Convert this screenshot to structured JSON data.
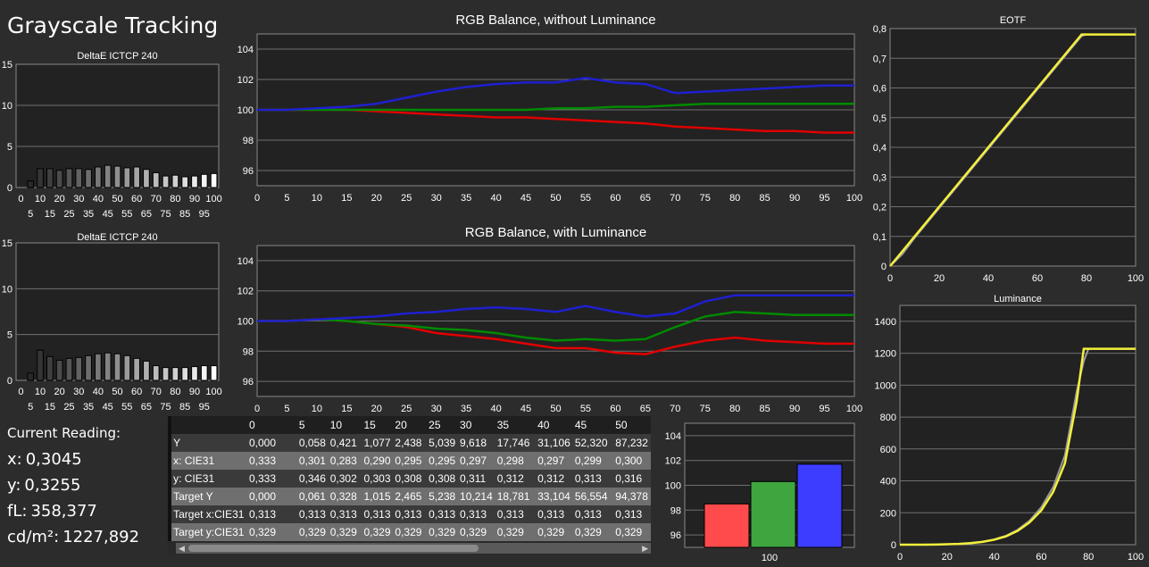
{
  "title": "Grayscale Tracking",
  "readout": {
    "heading": "Current Reading:",
    "lines": [
      {
        "label": "x:",
        "value": "0,3045"
      },
      {
        "label": "y:",
        "value": "0,3255"
      },
      {
        "label": "fL:",
        "value": "358,377"
      },
      {
        "label": "cd/m²:",
        "value": "1227,892"
      }
    ]
  },
  "colors": {
    "red": "#e00000",
    "green": "#008a00",
    "blue": "#1f1fd0",
    "yellow": "#f4f03c",
    "grid": "#707070"
  },
  "table": {
    "columns": [
      "0",
      "5",
      "10",
      "15",
      "20",
      "25",
      "30",
      "35",
      "40",
      "45",
      "50"
    ],
    "rows": [
      {
        "label": "Y",
        "values": [
          "0,000",
          "0,058",
          "0,421",
          "1,077",
          "2,438",
          "5,039",
          "9,618",
          "17,746",
          "31,106",
          "52,320",
          "87,232"
        ]
      },
      {
        "label": "x: CIE31",
        "values": [
          "0,333",
          "0,301",
          "0,283",
          "0,290",
          "0,295",
          "0,295",
          "0,297",
          "0,298",
          "0,297",
          "0,299",
          "0,300"
        ]
      },
      {
        "label": "y: CIE31",
        "values": [
          "0,333",
          "0,346",
          "0,302",
          "0,303",
          "0,308",
          "0,308",
          "0,311",
          "0,312",
          "0,312",
          "0,313",
          "0,316"
        ]
      },
      {
        "label": "Target Y",
        "values": [
          "0,000",
          "0,061",
          "0,328",
          "1,015",
          "2,465",
          "5,238",
          "10,214",
          "18,781",
          "33,104",
          "56,554",
          "94,378"
        ]
      },
      {
        "label": "Target x:CIE31",
        "values": [
          "0,313",
          "0,313",
          "0,313",
          "0,313",
          "0,313",
          "0,313",
          "0,313",
          "0,313",
          "0,313",
          "0,313",
          "0,313"
        ]
      },
      {
        "label": "Target y:CIE31",
        "values": [
          "0,329",
          "0,329",
          "0,329",
          "0,329",
          "0,329",
          "0,329",
          "0,329",
          "0,329",
          "0,329",
          "0,329",
          "0,329"
        ]
      }
    ]
  },
  "chart_data": [
    {
      "type": "bar",
      "title": "DeltaE ICTCP 240",
      "categories": [
        "0",
        "5",
        "10",
        "15",
        "20",
        "25",
        "30",
        "35",
        "40",
        "45",
        "50",
        "55",
        "60",
        "65",
        "70",
        "75",
        "80",
        "85",
        "90",
        "95",
        "100"
      ],
      "values": [
        0.0,
        0.8,
        2.3,
        2.3,
        2.1,
        2.3,
        2.3,
        2.2,
        2.5,
        2.7,
        2.6,
        2.4,
        2.5,
        2.2,
        1.8,
        1.4,
        1.5,
        1.3,
        1.4,
        1.6,
        1.7
      ],
      "ylim": [
        0,
        15
      ],
      "yticks": [
        0,
        5,
        10,
        15
      ],
      "xticks_top": [
        "0",
        "10",
        "20",
        "30",
        "40",
        "50",
        "60",
        "70",
        "80",
        "90",
        "100"
      ],
      "xticks_bottom": [
        "5",
        "15",
        "25",
        "35",
        "45",
        "55",
        "65",
        "75",
        "85",
        "95"
      ],
      "grid": true
    },
    {
      "type": "line",
      "title": "RGB Balance, without Luminance",
      "x": [
        0,
        5,
        10,
        15,
        20,
        25,
        30,
        35,
        40,
        45,
        50,
        55,
        60,
        65,
        70,
        75,
        80,
        85,
        90,
        95,
        100
      ],
      "series": [
        {
          "color": "red",
          "values": [
            100.0,
            100.0,
            100.0,
            100.0,
            99.9,
            99.8,
            99.7,
            99.6,
            99.5,
            99.5,
            99.4,
            99.3,
            99.2,
            99.1,
            98.9,
            98.8,
            98.7,
            98.6,
            98.6,
            98.5,
            98.5
          ]
        },
        {
          "color": "green",
          "values": [
            100.0,
            100.0,
            100.0,
            100.0,
            100.0,
            100.0,
            100.0,
            100.0,
            100.0,
            100.0,
            100.1,
            100.1,
            100.2,
            100.2,
            100.3,
            100.4,
            100.4,
            100.4,
            100.4,
            100.4,
            100.4
          ]
        },
        {
          "color": "blue",
          "values": [
            100.0,
            100.0,
            100.1,
            100.2,
            100.4,
            100.8,
            101.2,
            101.5,
            101.7,
            101.8,
            101.8,
            102.1,
            101.8,
            101.7,
            101.1,
            101.2,
            101.3,
            101.4,
            101.5,
            101.6,
            101.6
          ]
        }
      ],
      "xlim": [
        0,
        100
      ],
      "ylim": [
        95,
        105
      ],
      "yticks": [
        96,
        98,
        100,
        102,
        104
      ],
      "grid": true
    },
    {
      "type": "bar",
      "title": "DeltaE ICTCP 240",
      "categories": [
        "0",
        "5",
        "10",
        "15",
        "20",
        "25",
        "30",
        "35",
        "40",
        "45",
        "50",
        "55",
        "60",
        "65",
        "70",
        "75",
        "80",
        "85",
        "90",
        "95",
        "100"
      ],
      "values": [
        0.0,
        0.8,
        3.3,
        2.6,
        2.2,
        2.4,
        2.5,
        2.7,
        2.9,
        3.0,
        2.9,
        2.7,
        2.4,
        2.1,
        1.6,
        1.4,
        1.4,
        1.4,
        1.5,
        1.6,
        1.6
      ],
      "ylim": [
        0,
        15
      ],
      "yticks": [
        0,
        5,
        10,
        15
      ],
      "xticks_top": [
        "0",
        "10",
        "20",
        "30",
        "40",
        "50",
        "60",
        "70",
        "80",
        "90",
        "100"
      ],
      "xticks_bottom": [
        "5",
        "15",
        "25",
        "35",
        "45",
        "55",
        "65",
        "75",
        "85",
        "95"
      ],
      "grid": true
    },
    {
      "type": "line",
      "title": "RGB Balance, with Luminance",
      "x": [
        0,
        5,
        10,
        15,
        20,
        25,
        30,
        35,
        40,
        45,
        50,
        55,
        60,
        65,
        70,
        75,
        80,
        85,
        90,
        95,
        100
      ],
      "series": [
        {
          "color": "red",
          "values": [
            100.0,
            100.0,
            100.1,
            100.0,
            99.8,
            99.6,
            99.2,
            99.0,
            98.8,
            98.5,
            98.2,
            98.2,
            97.9,
            97.8,
            98.3,
            98.7,
            98.9,
            98.7,
            98.6,
            98.5,
            98.5
          ]
        },
        {
          "color": "green",
          "values": [
            100.0,
            100.0,
            100.1,
            100.0,
            99.8,
            99.7,
            99.5,
            99.4,
            99.2,
            98.9,
            98.7,
            98.8,
            98.7,
            98.8,
            99.6,
            100.3,
            100.6,
            100.5,
            100.4,
            100.4,
            100.4
          ]
        },
        {
          "color": "blue",
          "values": [
            100.0,
            100.0,
            100.1,
            100.2,
            100.3,
            100.5,
            100.6,
            100.8,
            100.9,
            100.8,
            100.6,
            101.0,
            100.6,
            100.3,
            100.5,
            101.3,
            101.7,
            101.7,
            101.7,
            101.7,
            101.7
          ]
        }
      ],
      "xlim": [
        0,
        100
      ],
      "ylim": [
        95,
        105
      ],
      "yticks": [
        96,
        98,
        100,
        102,
        104
      ],
      "grid": true
    },
    {
      "type": "line",
      "title": "EOTF",
      "x": [
        0,
        5,
        10,
        15,
        20,
        25,
        30,
        35,
        40,
        45,
        50,
        55,
        60,
        65,
        70,
        75,
        78,
        80,
        85,
        90,
        95,
        100
      ],
      "series": [
        {
          "color": "yellow",
          "values": [
            0.0,
            0.05,
            0.1,
            0.15,
            0.2,
            0.25,
            0.3,
            0.35,
            0.4,
            0.45,
            0.5,
            0.55,
            0.6,
            0.65,
            0.7,
            0.75,
            0.78,
            0.78,
            0.78,
            0.78,
            0.78,
            0.78
          ]
        },
        {
          "color": "gray",
          "values": [
            0.0,
            0.04,
            0.095,
            0.145,
            0.195,
            0.245,
            0.295,
            0.345,
            0.395,
            0.445,
            0.495,
            0.545,
            0.595,
            0.645,
            0.695,
            0.745,
            0.775,
            0.78,
            0.78,
            0.78,
            0.78,
            0.78
          ]
        }
      ],
      "xlim": [
        0,
        100
      ],
      "ylim": [
        0,
        0.8
      ],
      "yticks": [
        "0",
        "0,1",
        "0,2",
        "0,3",
        "0,4",
        "0,5",
        "0,6",
        "0,7",
        "0,8"
      ],
      "xticks": [
        0,
        20,
        40,
        60,
        80,
        100
      ],
      "grid": true
    },
    {
      "type": "line",
      "title": "Luminance",
      "x": [
        0,
        5,
        10,
        15,
        20,
        25,
        30,
        35,
        40,
        45,
        50,
        55,
        60,
        65,
        70,
        75,
        78,
        80,
        85,
        90,
        95,
        100
      ],
      "series": [
        {
          "color": "yellow",
          "values": [
            0,
            0.1,
            0.3,
            1,
            2.5,
            5,
            9.6,
            17.7,
            31,
            52,
            87,
            140,
            215,
            330,
            510,
            900,
            1228,
            1228,
            1228,
            1228,
            1228,
            1228
          ]
        },
        {
          "color": "gray",
          "values": [
            0,
            0.1,
            0.3,
            1,
            2.4,
            5.2,
            10,
            19,
            33,
            56,
            94,
            150,
            235,
            360,
            560,
            960,
            1150,
            1228,
            1228,
            1228,
            1228,
            1228
          ]
        }
      ],
      "xlim": [
        0,
        100
      ],
      "ylim": [
        0,
        1500
      ],
      "yticks": [
        0,
        200,
        400,
        600,
        800,
        1000,
        1200,
        1400
      ],
      "xticks": [
        0,
        20,
        40,
        60,
        80,
        100
      ],
      "grid": true
    },
    {
      "type": "bar",
      "categories": [
        "100"
      ],
      "series": [
        {
          "color": "red",
          "values": [
            98.5
          ]
        },
        {
          "color": "green",
          "values": [
            100.3
          ]
        },
        {
          "color": "blue",
          "values": [
            101.7
          ]
        }
      ],
      "ylim": [
        95,
        105
      ],
      "yticks": [
        96,
        98,
        100,
        102,
        104
      ],
      "xlabel": "100",
      "grid": true
    }
  ]
}
